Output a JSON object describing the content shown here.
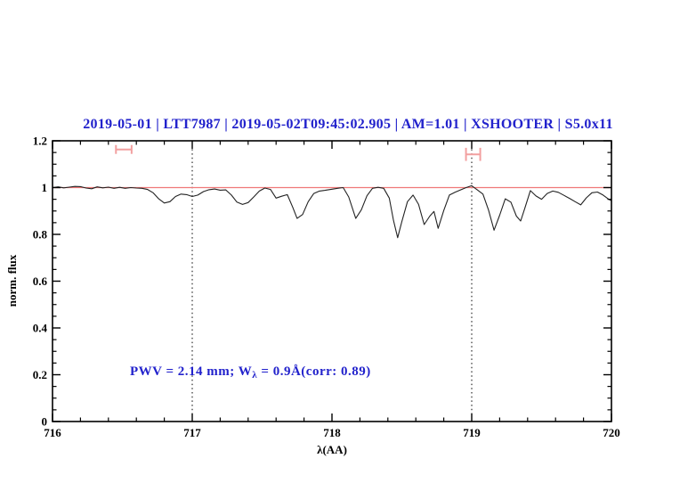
{
  "title": "2019-05-01 | LTT7987 | 2019-05-02T09:45:02.905 | AM=1.01 | XSHOOTER | S5.0x11",
  "annotation": {
    "prefix": "PWV = 2.14 mm; W",
    "subscript": "λ",
    "suffix": " = 0.9Å(corr: 0.89)"
  },
  "colors": {
    "title_blue": "#2222cc",
    "annotation_blue": "#2222cc",
    "spectrum_black": "#222222",
    "reference_red": "#f07878",
    "marker_pink": "#f2a0a0",
    "axis_black": "#000000",
    "background": "#ffffff"
  },
  "chart_data": {
    "type": "line",
    "title": "2019-05-01 | LTT7987 | 2019-05-02T09:45:02.905 | AM=1.01 | XSHOOTER | S5.0x11",
    "xlabel": "λ(AA)",
    "ylabel": "norm. flux",
    "xlim": [
      716,
      720
    ],
    "ylim": [
      0,
      1.2
    ],
    "grid": "off",
    "legend": "none",
    "x_major_ticks": [
      716,
      717,
      718,
      719,
      720
    ],
    "x_tick_labels": [
      "716",
      "717",
      "718",
      "719",
      "720"
    ],
    "x_minor_step": 0.2,
    "y_major_ticks": [
      0,
      0.2,
      0.4,
      0.6,
      0.8,
      1,
      1.2
    ],
    "y_tick_labels": [
      "0",
      "0.2",
      "0.4",
      "0.6",
      "0.8",
      "1",
      "1.2"
    ],
    "y_minor_step": 0.05,
    "dotted_vlines": [
      717,
      719
    ],
    "reference_line_y": 1.0,
    "range_markers": [
      {
        "x_center": 716.51,
        "half_width": 0.056,
        "y": 1.163,
        "half_height": 0.019
      },
      {
        "x_center": 719.01,
        "half_width": 0.051,
        "y": 1.142,
        "half_height": 0.028
      }
    ],
    "series": [
      {
        "name": "telluric-corrected spectrum",
        "x": [
          716.0,
          716.04,
          716.08,
          716.12,
          716.16,
          716.2,
          716.24,
          716.28,
          716.32,
          716.36,
          716.4,
          716.44,
          716.48,
          716.52,
          716.56,
          716.6,
          716.64,
          716.68,
          716.72,
          716.76,
          716.8,
          716.84,
          716.88,
          716.92,
          716.96,
          717.0,
          717.04,
          717.08,
          717.12,
          717.16,
          717.2,
          717.24,
          717.28,
          717.32,
          717.36,
          717.4,
          717.44,
          717.48,
          717.52,
          717.56,
          717.6,
          717.64,
          717.68,
          717.72,
          717.75,
          717.79,
          717.83,
          717.87,
          717.91,
          717.95,
          718.0,
          718.04,
          718.08,
          718.12,
          718.17,
          718.21,
          718.25,
          718.29,
          718.33,
          718.37,
          718.41,
          718.44,
          718.47,
          718.5,
          718.54,
          718.58,
          718.62,
          718.66,
          718.7,
          718.73,
          718.76,
          718.8,
          718.84,
          718.88,
          718.92,
          718.96,
          719.0,
          719.04,
          719.08,
          719.12,
          719.16,
          719.2,
          719.24,
          719.28,
          719.32,
          719.35,
          719.38,
          719.42,
          719.46,
          719.5,
          719.54,
          719.58,
          719.62,
          719.66,
          719.7,
          719.74,
          719.78,
          719.82,
          719.86,
          719.9,
          719.94,
          719.98,
          720.0
        ],
        "y": [
          1.0,
          1.003,
          0.999,
          1.002,
          1.005,
          1.004,
          0.998,
          0.995,
          1.003,
          0.999,
          1.002,
          0.997,
          1.001,
          0.997,
          1.0,
          0.998,
          0.997,
          0.992,
          0.978,
          0.952,
          0.934,
          0.94,
          0.962,
          0.972,
          0.97,
          0.962,
          0.968,
          0.983,
          0.991,
          0.994,
          0.989,
          0.99,
          0.968,
          0.938,
          0.928,
          0.936,
          0.96,
          0.985,
          0.998,
          0.992,
          0.955,
          0.963,
          0.97,
          0.915,
          0.868,
          0.885,
          0.94,
          0.975,
          0.985,
          0.988,
          0.993,
          0.997,
          1.0,
          0.96,
          0.868,
          0.905,
          0.965,
          0.997,
          1.001,
          0.997,
          0.955,
          0.86,
          0.786,
          0.855,
          0.94,
          0.968,
          0.928,
          0.842,
          0.878,
          0.898,
          0.826,
          0.902,
          0.968,
          0.98,
          0.99,
          1.0,
          1.008,
          0.99,
          0.972,
          0.905,
          0.818,
          0.882,
          0.952,
          0.938,
          0.878,
          0.857,
          0.912,
          0.987,
          0.964,
          0.95,
          0.975,
          0.985,
          0.98,
          0.967,
          0.954,
          0.94,
          0.926,
          0.956,
          0.978,
          0.981,
          0.968,
          0.95,
          0.944
        ]
      }
    ]
  }
}
